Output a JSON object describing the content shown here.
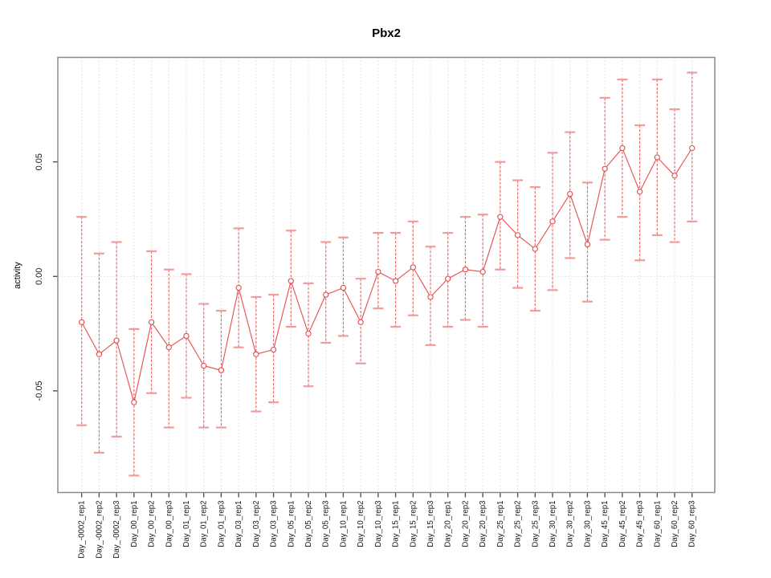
{
  "title": "Pbx2",
  "chart_data": {
    "type": "scatter",
    "title": "Pbx2",
    "xlabel": "",
    "ylabel": "activity",
    "ylim": [
      -0.095,
      0.096
    ],
    "grid": "vertical-dotted-per-category",
    "zero_line_dotted": true,
    "legend": "none",
    "yticks": [
      {
        "label": "0.05",
        "value": 0.05
      },
      {
        "label": "0.00",
        "value": 0.0
      },
      {
        "label": "-0.05",
        "value": -0.05
      }
    ],
    "categories": [
      "Day_-0002_rep1",
      "Day_-0002_rep2",
      "Day_-0002_rep3",
      "Day_00_rep1",
      "Day_00_rep2",
      "Day_00_rep3",
      "Day_01_rep1",
      "Day_01_rep2",
      "Day_01_rep3",
      "Day_03_rep1",
      "Day_03_rep2",
      "Day_03_rep3",
      "Day_05_rep1",
      "Day_05_rep2",
      "Day_05_rep3",
      "Day_10_rep1",
      "Day_10_rep2",
      "Day_10_rep3",
      "Day_15_rep1",
      "Day_15_rep2",
      "Day_15_rep3",
      "Day_20_rep1",
      "Day_20_rep2",
      "Day_20_rep3",
      "Day_25_rep1",
      "Day_25_rep2",
      "Day_25_rep3",
      "Day_30_rep1",
      "Day_30_rep2",
      "Day_30_rep3",
      "Day_45_rep1",
      "Day_45_rep2",
      "Day_45_rep3",
      "Day_60_rep1",
      "Day_60_rep2",
      "Day_60_rep3"
    ],
    "series": [
      {
        "name": "activity mean with error bars, connected by line",
        "values": [
          -0.02,
          -0.034,
          -0.028,
          -0.055,
          -0.02,
          -0.031,
          -0.026,
          -0.039,
          -0.041,
          -0.005,
          -0.034,
          -0.032,
          -0.002,
          -0.025,
          -0.008,
          -0.005,
          -0.02,
          0.002,
          -0.002,
          0.004,
          -0.009,
          -0.001,
          0.003,
          0.002,
          0.026,
          0.018,
          0.012,
          0.024,
          0.036,
          0.014,
          0.047,
          0.056,
          0.037,
          0.052,
          0.044,
          0.056
        ],
        "upper": [
          0.026,
          0.01,
          0.015,
          -0.023,
          0.011,
          0.003,
          0.001,
          -0.012,
          -0.015,
          0.021,
          -0.009,
          -0.008,
          0.02,
          -0.003,
          0.015,
          0.017,
          -0.001,
          0.019,
          0.019,
          0.024,
          0.013,
          0.019,
          0.026,
          0.027,
          0.05,
          0.042,
          0.039,
          0.054,
          0.063,
          0.041,
          0.078,
          0.086,
          0.066,
          0.086,
          0.073,
          0.089
        ],
        "lower": [
          -0.065,
          -0.077,
          -0.07,
          -0.087,
          -0.051,
          -0.066,
          -0.053,
          -0.066,
          -0.066,
          -0.031,
          -0.059,
          -0.055,
          -0.022,
          -0.048,
          -0.029,
          -0.026,
          -0.038,
          -0.014,
          -0.022,
          -0.017,
          -0.03,
          -0.022,
          -0.019,
          -0.022,
          0.003,
          -0.005,
          -0.015,
          -0.006,
          0.008,
          -0.011,
          0.016,
          0.026,
          0.007,
          0.018,
          0.015,
          0.024
        ]
      }
    ],
    "colors": {
      "point": "#e04b4b",
      "connector": "#e75353",
      "errorbar": "#ee6565",
      "errorbar_cap": "#f29b9b",
      "grid": "#dadada",
      "frame": "#8a8a8a",
      "tick": "#444444",
      "label_text": "#1a1a1a"
    }
  }
}
